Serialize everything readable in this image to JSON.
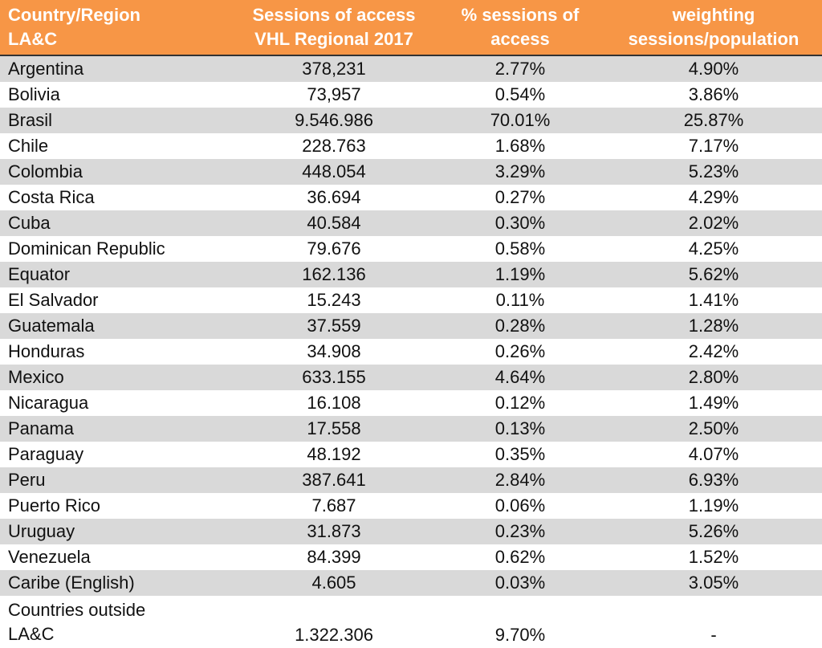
{
  "header": {
    "country": [
      "Country/Region",
      "LA&C"
    ],
    "sessions": [
      "Sessions of access",
      "VHL Regional 2017"
    ],
    "percent": [
      "% sessions of",
      "access"
    ],
    "weighting": [
      "weighting",
      "sessions/population"
    ]
  },
  "rows": [
    {
      "country": "Argentina",
      "sessions": "378,231",
      "percent": "2.77%",
      "weighting": "4.90%"
    },
    {
      "country": "Bolivia",
      "sessions": "73,957",
      "percent": "0.54%",
      "weighting": "3.86%"
    },
    {
      "country": "Brasil",
      "sessions": "9.546.986",
      "percent": "70.01%",
      "weighting": "25.87%"
    },
    {
      "country": "Chile",
      "sessions": "228.763",
      "percent": "1.68%",
      "weighting": "7.17%"
    },
    {
      "country": "Colombia",
      "sessions": "448.054",
      "percent": "3.29%",
      "weighting": "5.23%"
    },
    {
      "country": "Costa Rica",
      "sessions": "36.694",
      "percent": "0.27%",
      "weighting": "4.29%"
    },
    {
      "country": "Cuba",
      "sessions": "40.584",
      "percent": "0.30%",
      "weighting": "2.02%"
    },
    {
      "country": "Dominican Republic",
      "sessions": "79.676",
      "percent": "0.58%",
      "weighting": "4.25%"
    },
    {
      "country": "Equator",
      "sessions": "162.136",
      "percent": "1.19%",
      "weighting": "5.62%"
    },
    {
      "country": "El Salvador",
      "sessions": "15.243",
      "percent": "0.11%",
      "weighting": "1.41%"
    },
    {
      "country": "Guatemala",
      "sessions": "37.559",
      "percent": "0.28%",
      "weighting": "1.28%"
    },
    {
      "country": "Honduras",
      "sessions": "34.908",
      "percent": "0.26%",
      "weighting": "2.42%"
    },
    {
      "country": "Mexico",
      "sessions": "633.155",
      "percent": "4.64%",
      "weighting": "2.80%"
    },
    {
      "country": "Nicaragua",
      "sessions": "16.108",
      "percent": "0.12%",
      "weighting": "1.49%"
    },
    {
      "country": "Panama",
      "sessions": "17.558",
      "percent": "0.13%",
      "weighting": "2.50%"
    },
    {
      "country": "Paraguay",
      "sessions": "48.192",
      "percent": "0.35%",
      "weighting": "4.07%"
    },
    {
      "country": "Peru",
      "sessions": "387.641",
      "percent": "2.84%",
      "weighting": "6.93%"
    },
    {
      "country": "Puerto Rico",
      "sessions": "7.687",
      "percent": "0.06%",
      "weighting": "1.19%"
    },
    {
      "country": "Uruguay",
      "sessions": "31.873",
      "percent": "0.23%",
      "weighting": "5.26%"
    },
    {
      "country": "Venezuela",
      "sessions": "84.399",
      "percent": "0.62%",
      "weighting": "1.52%"
    },
    {
      "country": "Caribe (English)",
      "sessions": "4.605",
      "percent": "0.03%",
      "weighting": "3.05%"
    }
  ],
  "outside": {
    "country": [
      "Countries outside",
      "LA&C"
    ],
    "sessions": "1.322.306",
    "percent": "9.70%",
    "weighting": "-"
  },
  "colors": {
    "header_bg": "#F79646",
    "header_text": "#FFFFFF",
    "row_shade": "#D9D9D9"
  }
}
